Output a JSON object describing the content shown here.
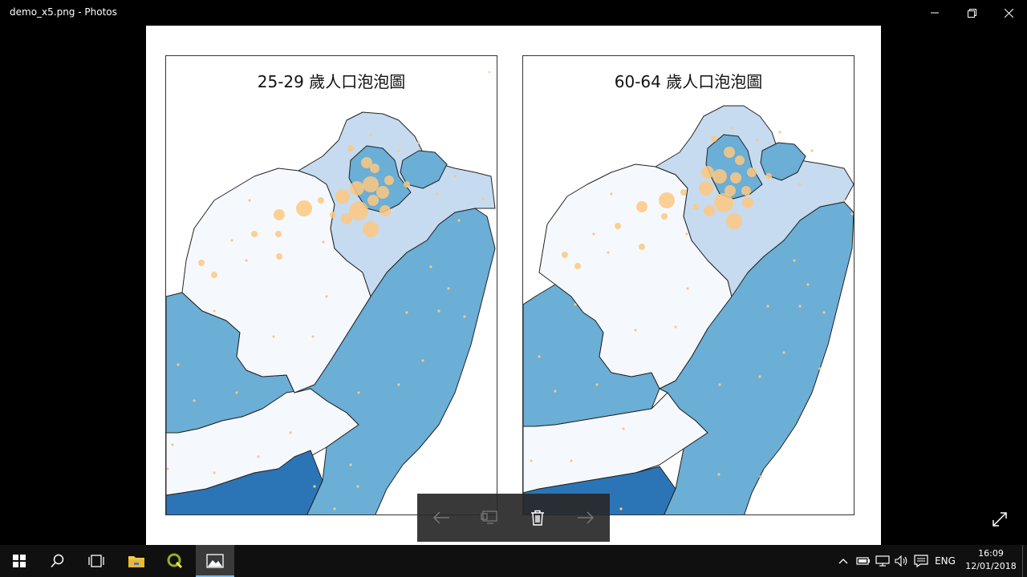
{
  "window": {
    "title": "demo_x5.png - Photos"
  },
  "maps": [
    {
      "title": "25-29 歲人口泡泡圖"
    },
    {
      "title": "60-64 歲人口泡泡圖"
    }
  ],
  "colors": {
    "lightest": "#f5f9fe",
    "light": "#c6dbef",
    "medium": "#6baed6",
    "dark": "#2b75b7",
    "bubble": "#fdc880"
  },
  "icons": {
    "previous": "arrow-left-icon",
    "slideshow": "slideshow-icon",
    "delete": "trash-icon",
    "next": "arrow-right-icon",
    "expand": "expand-icon"
  },
  "taskbar": {
    "language": "ENG",
    "time": "16:09",
    "date": "12/01/2018"
  }
}
